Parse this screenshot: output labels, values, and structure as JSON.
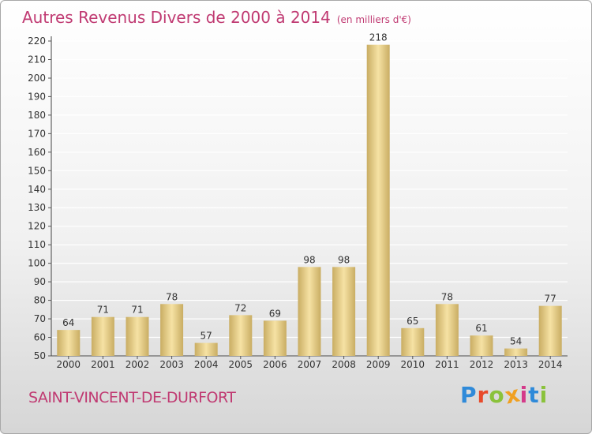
{
  "header": {
    "title": "Autres Revenus Divers de 2000 à 2014",
    "unit_label": "(en milliers d'€)"
  },
  "footer": {
    "commune": "SAINT-VINCENT-DE-DURFORT",
    "brand": "Proxiti",
    "brand_letters": [
      {
        "ch": "P",
        "color": "#2f8ad9"
      },
      {
        "ch": "r",
        "color": "#e84a2a"
      },
      {
        "ch": "o",
        "color": "#8ac23b"
      },
      {
        "ch": "x",
        "color": "#f0a021"
      },
      {
        "ch": "i",
        "color": "#d43a8a"
      },
      {
        "ch": "t",
        "color": "#2f8ad9"
      },
      {
        "ch": "i",
        "color": "#8ac23b"
      }
    ]
  },
  "colors": {
    "title": "#c03a72",
    "bar_light": "#f6e2a4",
    "bar_dark": "#c9ad63",
    "grid": "#ffffff"
  },
  "chart_data": {
    "type": "bar",
    "title": "Autres Revenus Divers de 2000 à 2014",
    "subtitle": "(en milliers d'€)",
    "xlabel": "",
    "ylabel": "",
    "categories": [
      "2000",
      "2001",
      "2002",
      "2003",
      "2004",
      "2005",
      "2006",
      "2007",
      "2008",
      "2009",
      "2010",
      "2011",
      "2012",
      "2013",
      "2014"
    ],
    "values": [
      64,
      71,
      71,
      78,
      57,
      72,
      69,
      98,
      98,
      218,
      65,
      78,
      61,
      54,
      77
    ],
    "ylim": [
      50,
      220
    ],
    "yticks": [
      50,
      60,
      70,
      80,
      90,
      100,
      110,
      120,
      130,
      140,
      150,
      160,
      170,
      180,
      190,
      200,
      210,
      220
    ],
    "grid": true,
    "data_labels": true
  }
}
